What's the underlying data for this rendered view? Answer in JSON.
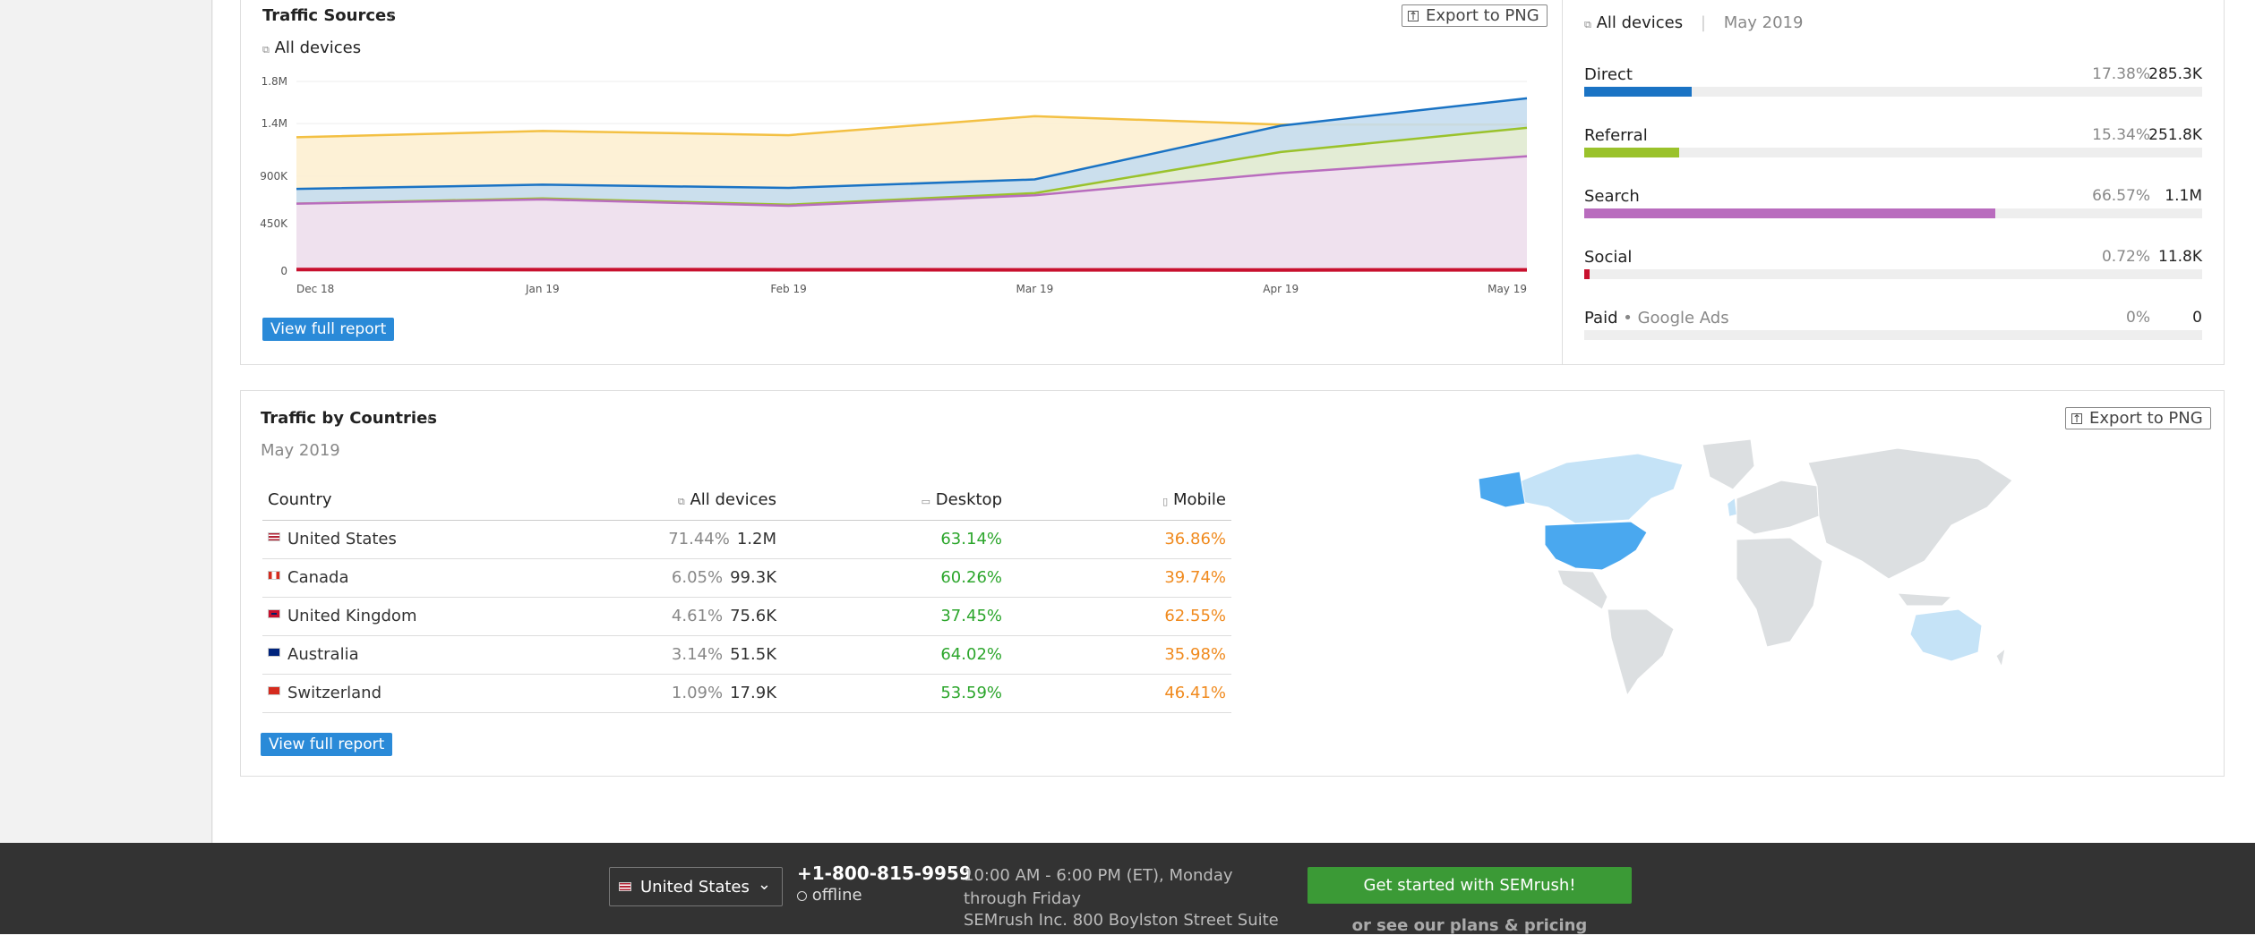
{
  "colors": {
    "direct": "#1a73c4",
    "referral": "#9ac22b",
    "search": "#b96cbe",
    "social": "#c8102e",
    "paid": "#cccccc",
    "direct_fill": "#c5ddf0",
    "referral_fill": "#e6edd2",
    "search_fill": "#f0e0f1",
    "yellow_line": "#f3c043",
    "yellow_fill": "#fdf0d2"
  },
  "traffic_sources": {
    "title": "Traffic Sources",
    "info": "i",
    "device_label": "All devices",
    "export_label": "Export to PNG",
    "view_full_report": "View full report",
    "chart_data": {
      "type": "area",
      "x": [
        "Dec 18",
        "Jan 19",
        "Feb 19",
        "Mar 19",
        "Apr 19",
        "May 19"
      ],
      "y_ticks": [
        "0",
        "450K",
        "900K",
        "1.4M",
        "1.8M"
      ],
      "ylim": [
        0,
        1800000
      ],
      "series": [
        {
          "key": "yellow",
          "values": [
            1270000,
            1330000,
            1290000,
            1470000,
            1390000,
            1390000
          ]
        },
        {
          "key": "direct",
          "values": [
            780000,
            820000,
            790000,
            870000,
            1380000,
            1640000
          ]
        },
        {
          "key": "referral",
          "values": [
            640000,
            690000,
            630000,
            740000,
            1130000,
            1360000
          ]
        },
        {
          "key": "search",
          "values": [
            640000,
            680000,
            620000,
            720000,
            930000,
            1090000
          ]
        },
        {
          "key": "social",
          "values": [
            15000,
            14000,
            13000,
            12000,
            11000,
            11800
          ]
        }
      ]
    }
  },
  "sources_breakdown": {
    "device_label": "All devices",
    "period": "May 2019",
    "rows": [
      {
        "name": "Direct",
        "pct": "17.38%",
        "value": "285.3K",
        "share": 0.1738,
        "color_key": "direct"
      },
      {
        "name": "Referral",
        "pct": "15.34%",
        "value": "251.8K",
        "share": 0.1534,
        "color_key": "referral"
      },
      {
        "name": "Search",
        "pct": "66.57%",
        "value": "1.1M",
        "share": 0.6657,
        "color_key": "search"
      },
      {
        "name": "Social",
        "pct": "0.72%",
        "value": "11.8K",
        "share": 0.0072,
        "color_key": "social"
      },
      {
        "name": "Paid",
        "sub": "• Google Ads",
        "pct": "0%",
        "value": "0",
        "share": 0,
        "color_key": "paid"
      }
    ]
  },
  "traffic_by_countries": {
    "title": "Traffic by Countries",
    "info": "i",
    "period": "May 2019",
    "export_label": "Export to PNG",
    "view_full_report": "View full report",
    "columns": {
      "country": "Country",
      "all": "All devices",
      "desktop": "Desktop",
      "mobile": "Mobile"
    },
    "rows": [
      {
        "country": "United States",
        "all_pct": "71.44%",
        "all_val": "1.2M",
        "desktop": "63.14%",
        "mobile": "36.86%",
        "flag": "us"
      },
      {
        "country": "Canada",
        "all_pct": "6.05%",
        "all_val": "99.3K",
        "desktop": "60.26%",
        "mobile": "39.74%",
        "flag": "ca"
      },
      {
        "country": "United Kingdom",
        "all_pct": "4.61%",
        "all_val": "75.6K",
        "desktop": "37.45%",
        "mobile": "62.55%",
        "flag": "gb"
      },
      {
        "country": "Australia",
        "all_pct": "3.14%",
        "all_val": "51.5K",
        "desktop": "64.02%",
        "mobile": "35.98%",
        "flag": "au"
      },
      {
        "country": "Switzerland",
        "all_pct": "1.09%",
        "all_val": "17.9K",
        "desktop": "53.59%",
        "mobile": "46.41%",
        "flag": "ch"
      }
    ]
  },
  "footer": {
    "country": "United States",
    "phone": "+1-800-815-9959",
    "status": "offline",
    "hours": "10:00 AM - 6:00 PM (ET), Monday through Friday",
    "address": "SEMrush Inc. 800 Boylston Street Suite",
    "cta": "Get started with SEMrush!",
    "plans_link": "or see our plans & pricing"
  }
}
